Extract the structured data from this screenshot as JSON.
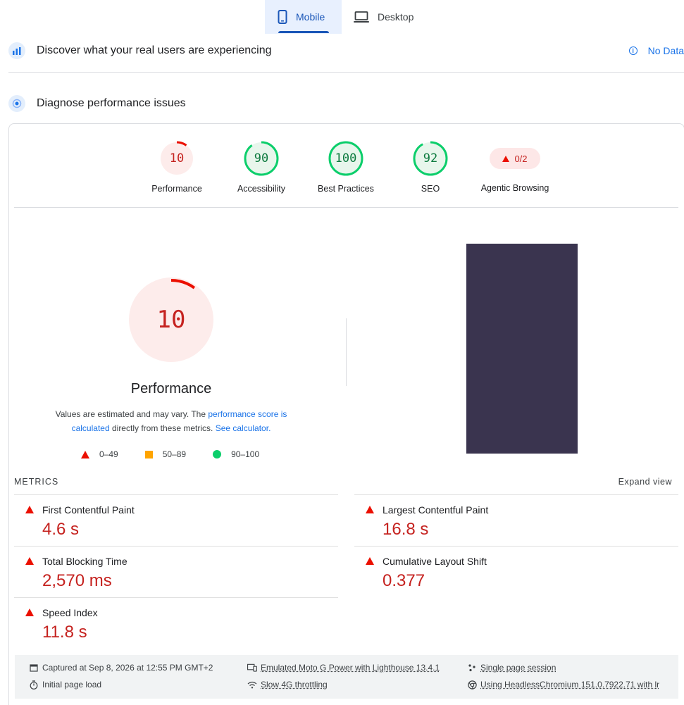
{
  "tabs": [
    {
      "label": "Mobile",
      "icon": "phone-icon",
      "active": true
    },
    {
      "label": "Desktop",
      "icon": "laptop-icon",
      "active": false
    }
  ],
  "crux": {
    "title": "Discover what your real users are experiencing",
    "status": "No Data"
  },
  "diagnose": {
    "title": "Diagnose performance issues"
  },
  "scores": [
    {
      "label": "Performance",
      "value": 10,
      "status": "fail"
    },
    {
      "label": "Accessibility",
      "value": 90,
      "status": "pass"
    },
    {
      "label": "Best Practices",
      "value": 100,
      "status": "pass"
    },
    {
      "label": "SEO",
      "value": 92,
      "status": "pass"
    }
  ],
  "agentic": {
    "label": "Agentic Browsing",
    "value": "0/2"
  },
  "performance": {
    "score": 10,
    "title": "Performance",
    "desc_part1": "Values are estimated and may vary. The ",
    "desc_link1": "performance score is calculated",
    "desc_part2": " directly from these metrics. ",
    "desc_link2": "See calculator."
  },
  "legend": [
    "0–49",
    "50–89",
    "90–100"
  ],
  "metrics_header": {
    "title": "METRICS",
    "expand": "Expand view"
  },
  "metrics": [
    {
      "name": "First Contentful Paint",
      "value": "4.6 s"
    },
    {
      "name": "Largest Contentful Paint",
      "value": "16.8 s"
    },
    {
      "name": "Total Blocking Time",
      "value": "2,570 ms"
    },
    {
      "name": "Cumulative Layout Shift",
      "value": "0.377"
    },
    {
      "name": "Speed Index",
      "value": "11.8 s"
    }
  ],
  "footer": {
    "captured": "Captured at Sep 8, 2026 at 12:55 PM GMT+2",
    "load": "Initial page load",
    "device": "Emulated Moto G Power with Lighthouse 13.4.1",
    "throttling": "Slow 4G throttling",
    "session": "Single page session",
    "browser": "Using HeadlessChromium 151.0.7922.71 with lr"
  },
  "colors": {
    "fail": "#c5221f",
    "pass": "#0c7a3e",
    "accent": "#1a73e8",
    "screenshot": "#3a344f"
  }
}
